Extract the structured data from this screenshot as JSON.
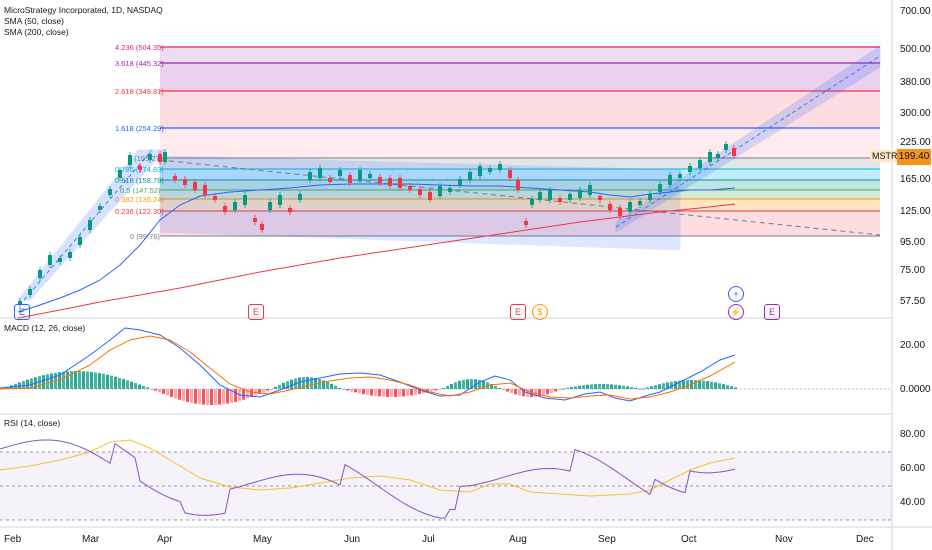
{
  "header": {
    "title": "MicroStrategy Incorporated, 1D, NASDAQ",
    "sma50": "SMA (50, close)",
    "sma200": "SMA (200, close)"
  },
  "price_axis": [
    "700.00",
    "500.00",
    "380.00",
    "300.00",
    "225.00",
    "165.00",
    "125.00",
    "95.00",
    "75.00",
    "57.50"
  ],
  "price_tag": {
    "ticker": "MSTR",
    "price": "199.40",
    "color": "#f7931a"
  },
  "fib_levels": [
    {
      "label": "4.236 (504.35)",
      "color": "#e91e63"
    },
    {
      "label": "3.618 (445.32)",
      "color": "#9c27b0"
    },
    {
      "label": "2.618 (349.81)",
      "color": "#f23645"
    },
    {
      "label": "1.618 (254.29)",
      "color": "#2962ff"
    },
    {
      "label": "1 (195.27)",
      "color": "#787b86"
    },
    {
      "label": "0.786 (174.83)",
      "color": "#00bcd4"
    },
    {
      "label": "0.618 (158.78)",
      "color": "#089981"
    },
    {
      "label": "0.5 (147.52)",
      "color": "#4caf50"
    },
    {
      "label": "0.382 (136.24)",
      "color": "#ff9800"
    },
    {
      "label": "0.236 (122.30)",
      "color": "#f23645"
    },
    {
      "label": "0 (99.76)",
      "color": "#787b86"
    }
  ],
  "macd": {
    "title": "MACD (12, 26, close)",
    "axis": [
      "20.00",
      "0.0000"
    ]
  },
  "rsi": {
    "title": "RSI (14, close)",
    "axis": [
      "80.00",
      "60.00",
      "40.00"
    ]
  },
  "time_axis": [
    "Feb",
    "Mar",
    "Apr",
    "May",
    "Jun",
    "Jul",
    "Aug",
    "Sep",
    "Oct",
    "Nov",
    "Dec"
  ],
  "events": {
    "earnings": "E",
    "dividend": "$",
    "split": "⚡",
    "plus": "+"
  },
  "colors": {
    "up": "#089981",
    "down": "#f23645",
    "sma50": "#2962ff",
    "sma200": "#f23645",
    "channel": "#2962ff",
    "macd_line": "#2962ff",
    "signal_line": "#ff6d00",
    "rsi_line": "#7e57c2",
    "rsi_ma": "#fbc02d"
  }
}
